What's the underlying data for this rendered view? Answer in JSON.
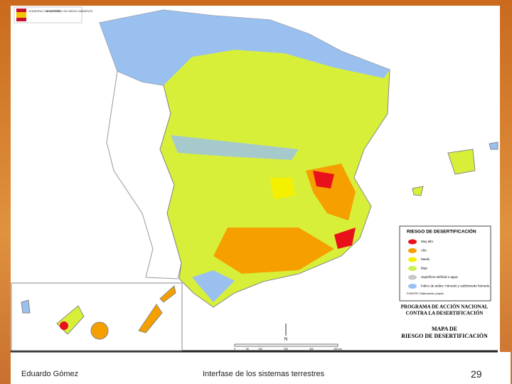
{
  "logo": {
    "lines": [
      "GOBIERNO DE ESPAÑA",
      "MINISTERIO DE MEDIO AMBIENTE"
    ]
  },
  "legend": {
    "title": "RIESGO DE DESERTIFICACIÓN",
    "items": [
      {
        "label": "Muy alto",
        "color": "#e8101a"
      },
      {
        "label": "Alto",
        "color": "#f5a000"
      },
      {
        "label": "Medio",
        "color": "#f5f000"
      },
      {
        "label": "Bajo",
        "color": "#c8f050"
      },
      {
        "label": "Superficie artificial o agua",
        "color": "#c8c8c8"
      },
      {
        "label": "Índice de aridez: húmedo y subhúmedo húmedo",
        "color": "#9ac0f0"
      }
    ],
    "source": "FUENTE: Elaboración propia"
  },
  "program_title": [
    "PROGRAMA DE ACCIÓN NACIONAL",
    "CONTRA LA DESERTIFICACIÓN"
  ],
  "map_title": [
    "MAPA DE",
    "RIESGO DE DESERTIFICACIÓN"
  ],
  "north": "N",
  "scale": [
    "0",
    "50",
    "100",
    "200",
    "300",
    "400 km"
  ],
  "footer": {
    "author": "Eduardo Gómez",
    "course": "Interfase de los sistemas terrestres",
    "page": "29"
  }
}
